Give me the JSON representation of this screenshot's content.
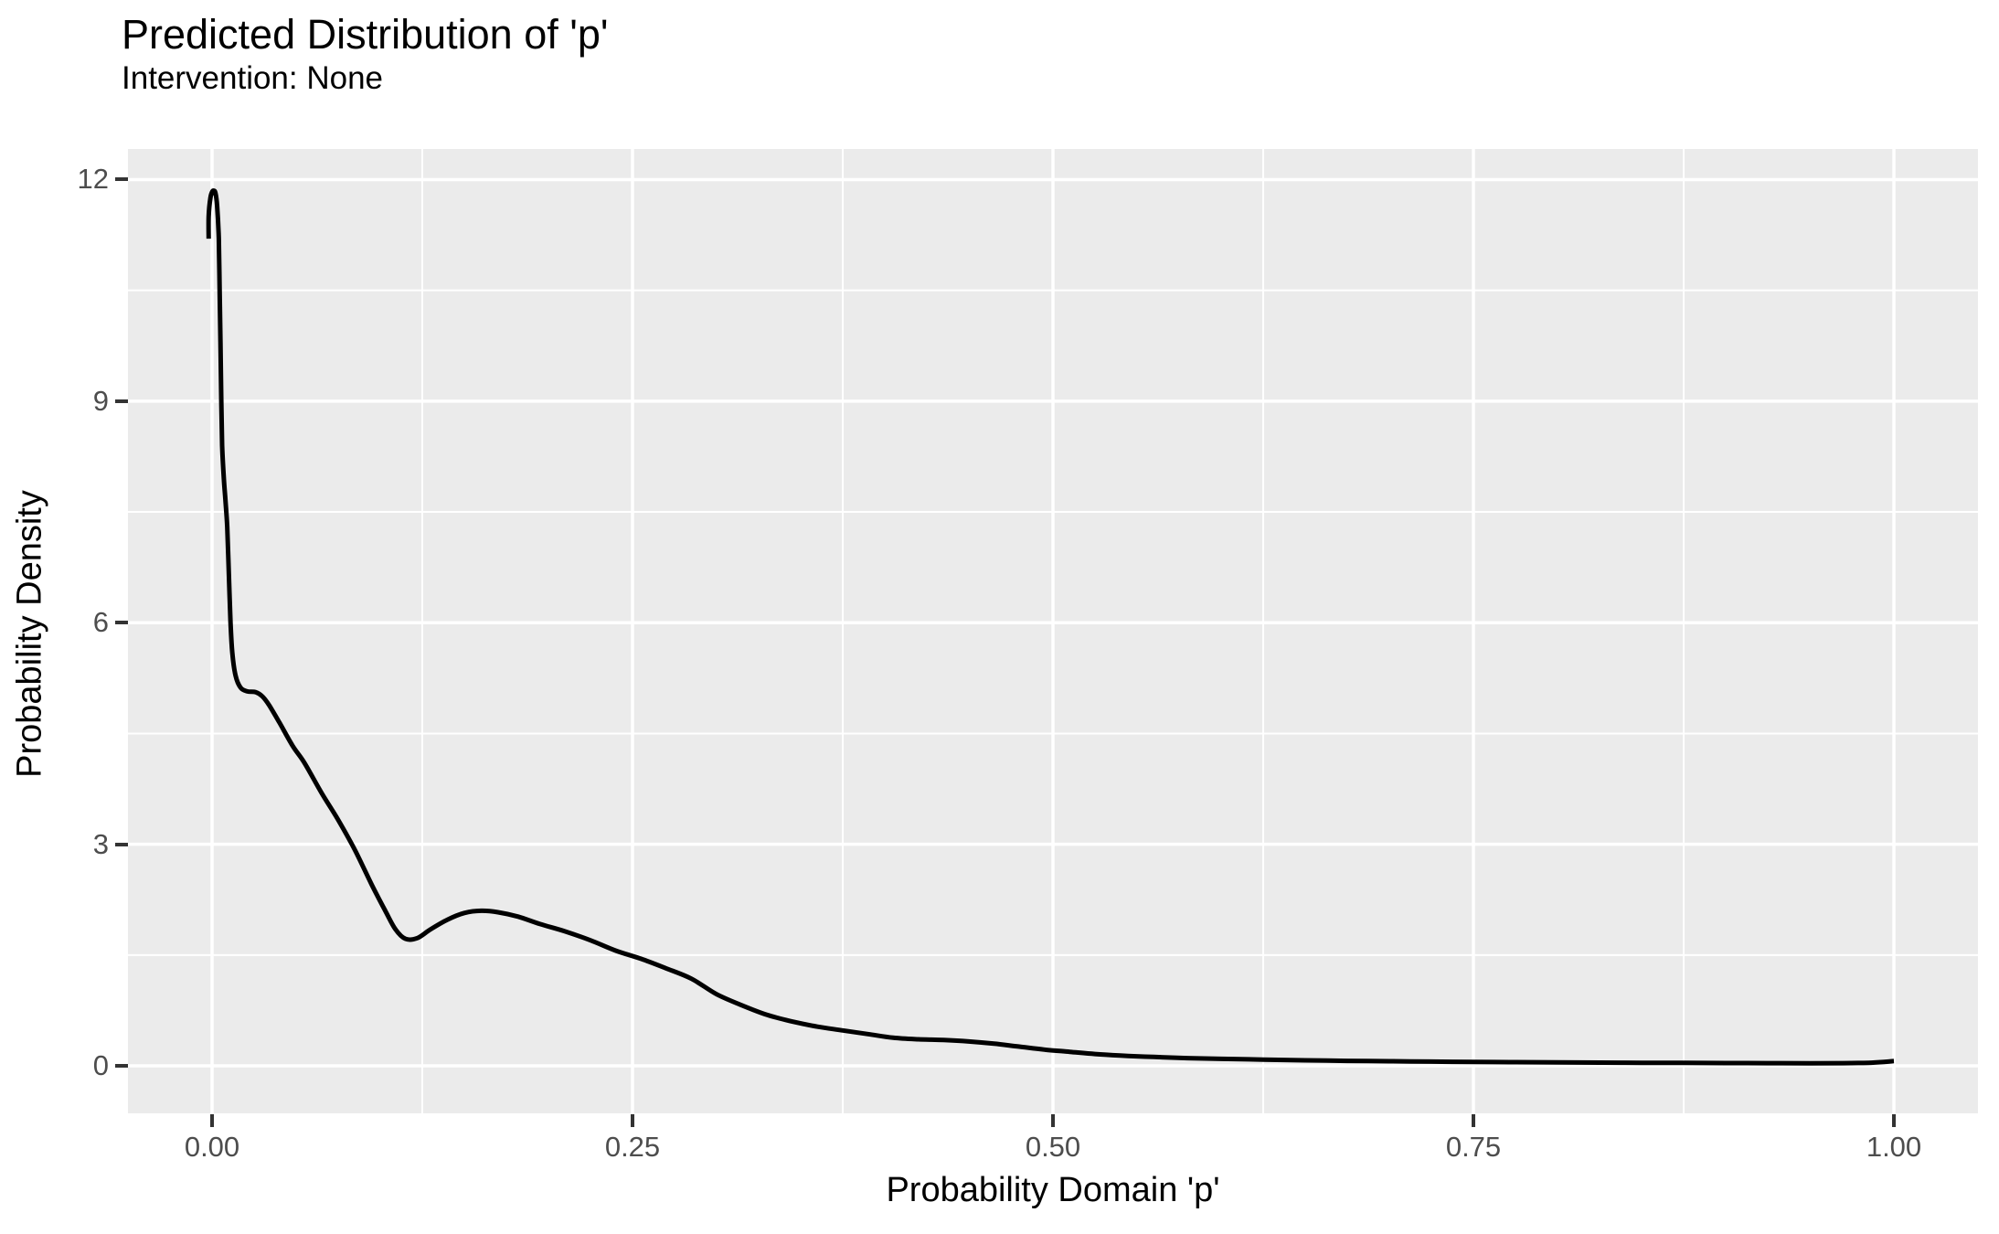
{
  "title": "Predicted Distribution of 'p'",
  "subtitle": "Intervention: None",
  "chart_data": {
    "type": "line",
    "title": "Predicted Distribution of 'p'",
    "subtitle": "Intervention: None",
    "xlabel": "Probability Domain 'p'",
    "ylabel": "Probability Density",
    "xlim": [
      -0.05,
      1.05
    ],
    "ylim": [
      -0.643,
      12.414
    ],
    "grid": "major-and-minor-white-on-gray",
    "legend_position": "none",
    "x_ticks": {
      "values": [
        0,
        0.25,
        0.5,
        0.75,
        1.0
      ],
      "labels": [
        "0.00",
        "0.25",
        "0.50",
        "0.75",
        "1.00"
      ]
    },
    "y_ticks": {
      "values": [
        0,
        3,
        6,
        9,
        12
      ],
      "labels": [
        "0",
        "3",
        "6",
        "9",
        "12"
      ]
    },
    "x_minor_ticks": [
      0.125,
      0.375,
      0.625,
      0.875
    ],
    "y_minor_ticks": [
      1.5,
      4.5,
      7.5,
      10.5
    ],
    "series": [
      {
        "name": "density",
        "x": [
          -0.002,
          -0.002,
          -0.001,
          0.0,
          0.001,
          0.002,
          0.003,
          0.004,
          0.0045,
          0.005,
          0.0055,
          0.006,
          0.007,
          0.008,
          0.009,
          0.01,
          0.011,
          0.012,
          0.014,
          0.017,
          0.021,
          0.026,
          0.03,
          0.034,
          0.04,
          0.048,
          0.055,
          0.065,
          0.075,
          0.085,
          0.095,
          0.103,
          0.109,
          0.115,
          0.122,
          0.13,
          0.14,
          0.15,
          0.16,
          0.17,
          0.182,
          0.195,
          0.21,
          0.225,
          0.24,
          0.255,
          0.27,
          0.285,
          0.3,
          0.315,
          0.33,
          0.345,
          0.36,
          0.375,
          0.39,
          0.405,
          0.42,
          0.435,
          0.45,
          0.465,
          0.48,
          0.495,
          0.51,
          0.525,
          0.54,
          0.56,
          0.58,
          0.6,
          0.625,
          0.65,
          0.675,
          0.7,
          0.725,
          0.75,
          0.775,
          0.8,
          0.825,
          0.85,
          0.875,
          0.9,
          0.925,
          0.95,
          0.97,
          0.985,
          0.995,
          1.0
        ],
        "y": [
          11.2,
          11.5,
          11.75,
          11.83,
          11.85,
          11.82,
          11.65,
          11.2,
          10.5,
          9.8,
          9.0,
          8.4,
          7.95,
          7.65,
          7.3,
          6.65,
          6.0,
          5.6,
          5.28,
          5.12,
          5.07,
          5.06,
          5.0,
          4.88,
          4.65,
          4.33,
          4.1,
          3.7,
          3.33,
          2.92,
          2.45,
          2.1,
          1.85,
          1.72,
          1.73,
          1.85,
          1.98,
          2.07,
          2.1,
          2.08,
          2.02,
          1.92,
          1.82,
          1.7,
          1.56,
          1.45,
          1.32,
          1.18,
          0.97,
          0.82,
          0.69,
          0.6,
          0.53,
          0.48,
          0.43,
          0.38,
          0.36,
          0.35,
          0.33,
          0.3,
          0.26,
          0.22,
          0.19,
          0.16,
          0.14,
          0.12,
          0.105,
          0.095,
          0.085,
          0.075,
          0.068,
          0.062,
          0.057,
          0.053,
          0.05,
          0.047,
          0.044,
          0.042,
          0.04,
          0.038,
          0.036,
          0.035,
          0.036,
          0.042,
          0.055,
          0.065
        ]
      }
    ],
    "colors": {
      "panel_bg": "#EBEBEB",
      "grid": "#FFFFFF",
      "line": "#000000",
      "tick_label_text": "#4D4D4D",
      "tick_mark": "#333333",
      "title_text": "#000000"
    }
  }
}
